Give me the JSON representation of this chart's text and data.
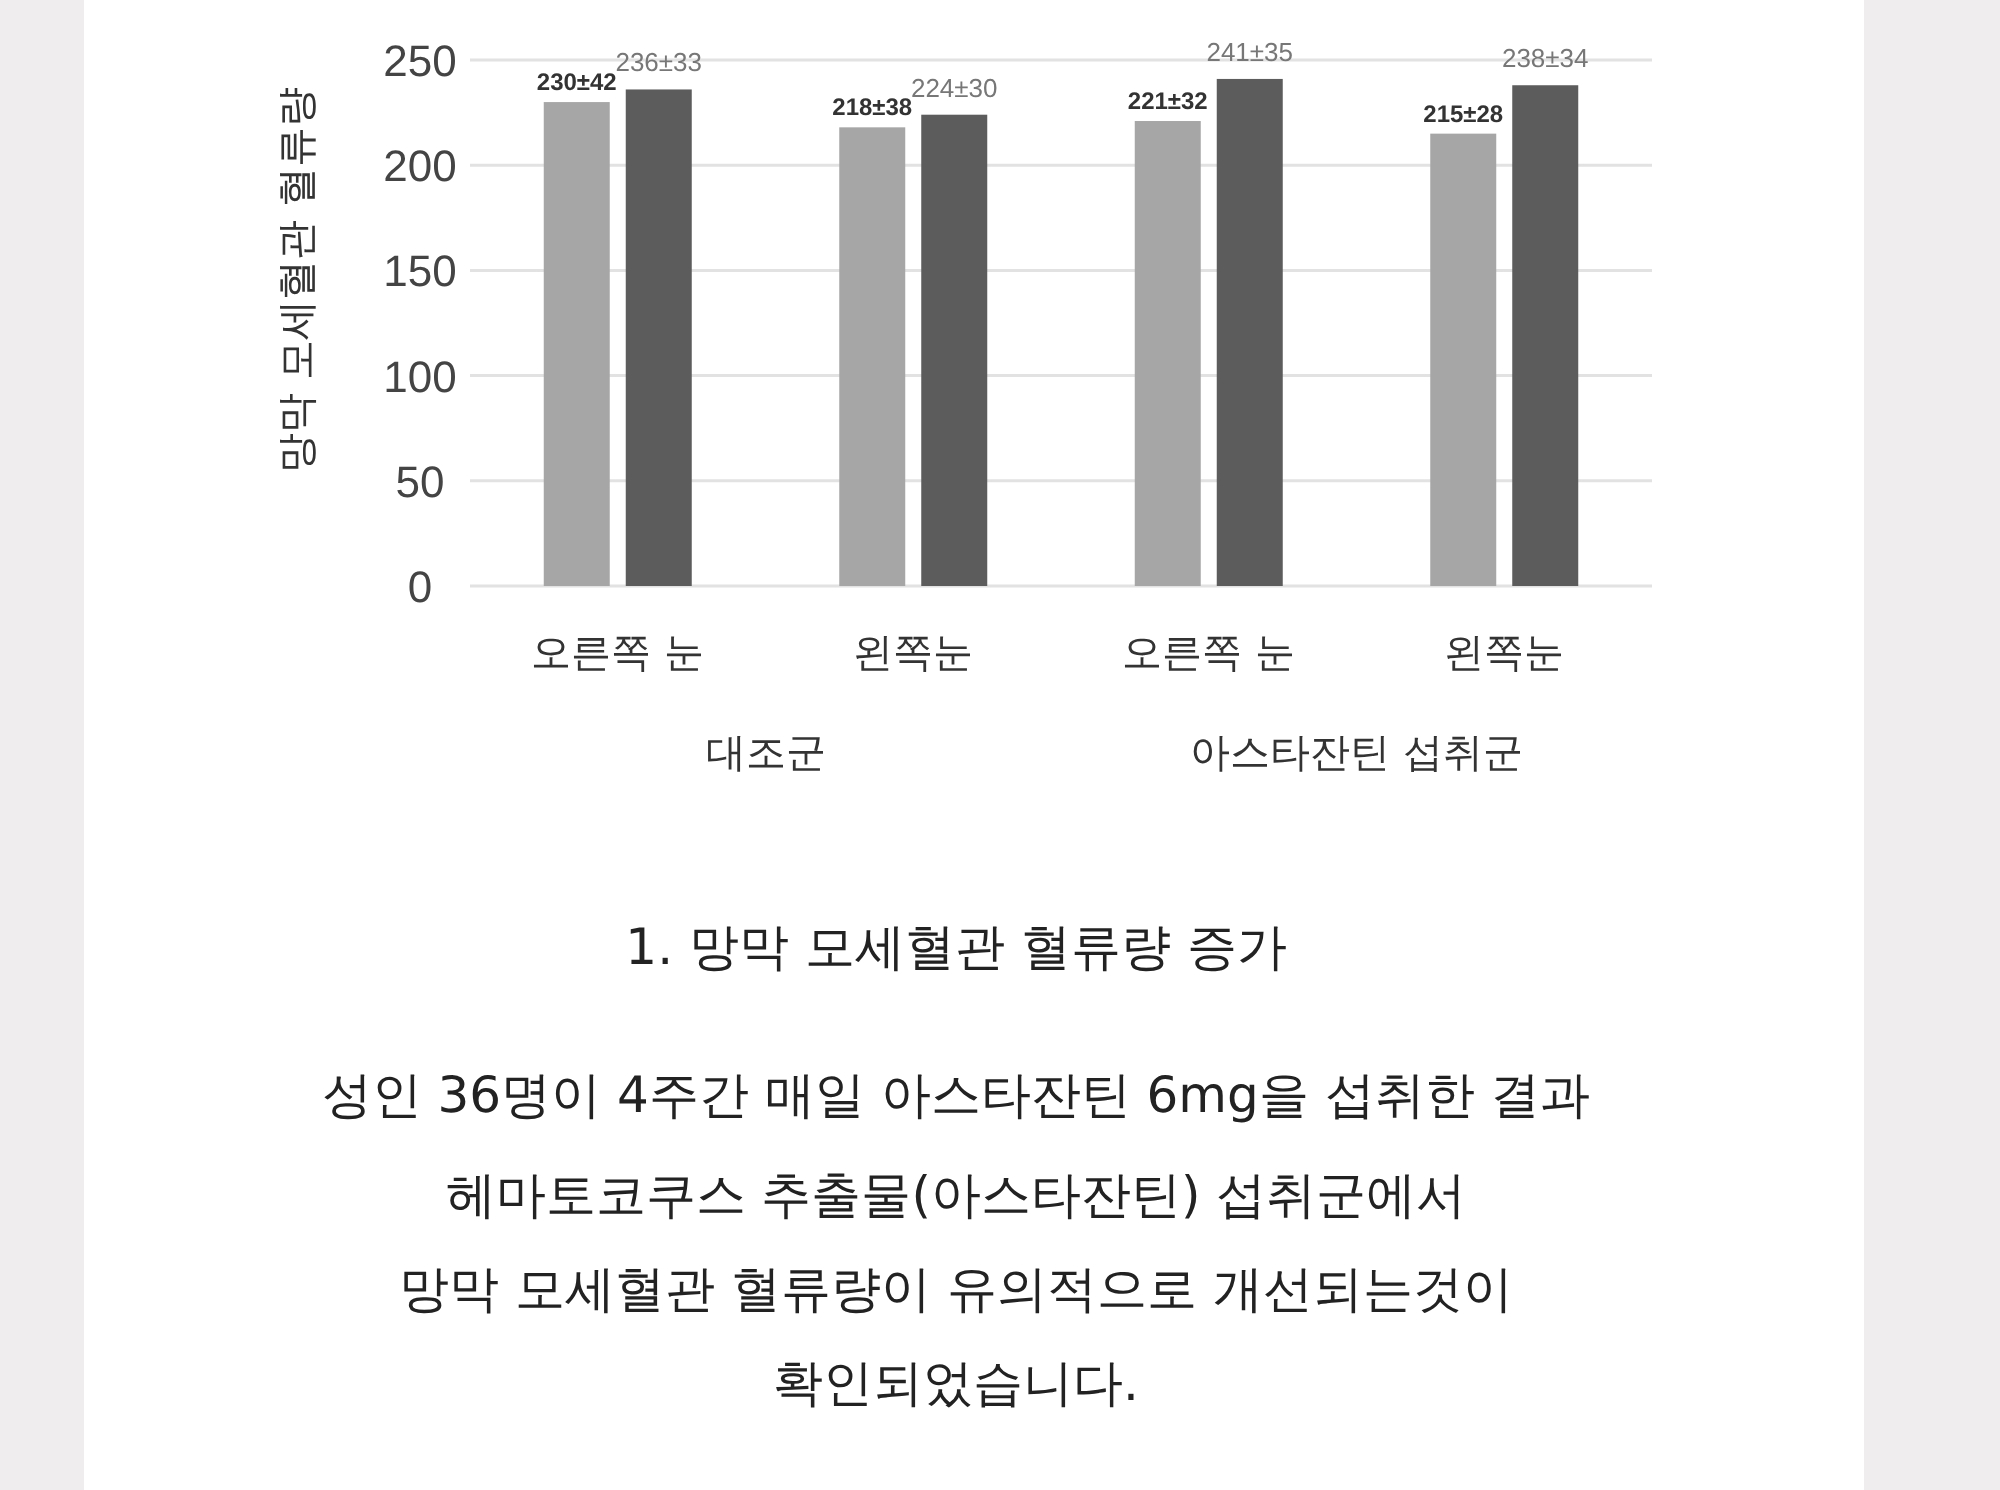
{
  "chart_data": {
    "type": "bar",
    "title": "1. 망막 모세혈관 혈류량 증가",
    "ylabel": "망막 모세혈관 혈류량",
    "categories": [
      "오른쪽 눈",
      "왼쪽눈",
      "오른쪽 눈",
      "왼쪽눈"
    ],
    "series": [
      {
        "color": "#a6a6a6",
        "values": [
          230,
          218,
          221,
          215
        ],
        "value_labels": [
          "230±42",
          "218±38",
          "221±32",
          "215±28"
        ]
      },
      {
        "color": "#5c5c5c",
        "values": [
          236,
          224,
          241,
          238
        ],
        "value_labels": [
          "236±33",
          "224±30",
          "241±35",
          "238±34"
        ]
      }
    ],
    "ylim": [
      0,
      250
    ],
    "yticks": [
      0,
      50,
      100,
      150,
      200,
      250
    ],
    "grid": "y",
    "annotations": [
      "대조군",
      "아스타잔틴 섭취군",
      "성인 36명이 4주간 매일 아스타잔틴 6mg을 섭취한 결과",
      "헤마토코쿠스 추출물(아스타잔틴) 섭취군에서",
      "망막 모세혈관 혈류량이 유의적으로 개선되는것이",
      "확인되었습니다."
    ]
  }
}
